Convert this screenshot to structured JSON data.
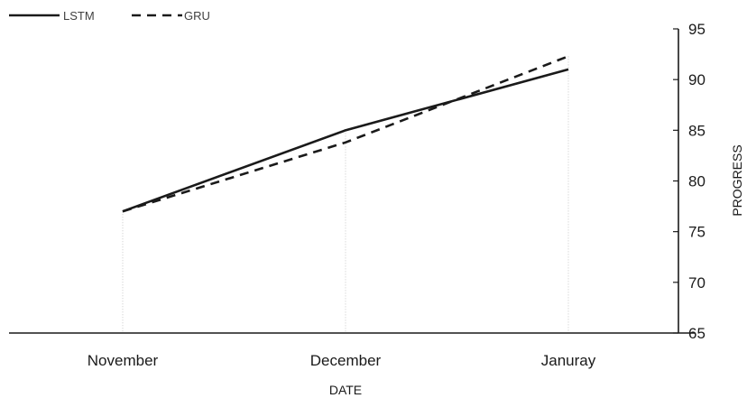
{
  "chart_data": {
    "type": "line",
    "title": "",
    "xlabel": "DATE",
    "ylabel": "PROGRESS",
    "categories": [
      "November",
      "December",
      "Januray"
    ],
    "ylim": [
      65,
      95
    ],
    "yticks": [
      65,
      70,
      75,
      80,
      85,
      90,
      95
    ],
    "y_axis_side": "right",
    "grid": false,
    "vertical_drop_lines": true,
    "legend": "top-left",
    "series": [
      {
        "name": "LSTM",
        "values": [
          77,
          85,
          91
        ],
        "style": "solid",
        "color": "#1a1a1a"
      },
      {
        "name": "GRU",
        "values": [
          77,
          83.8,
          92.3
        ],
        "style": "dashed",
        "color": "#1a1a1a"
      }
    ]
  }
}
